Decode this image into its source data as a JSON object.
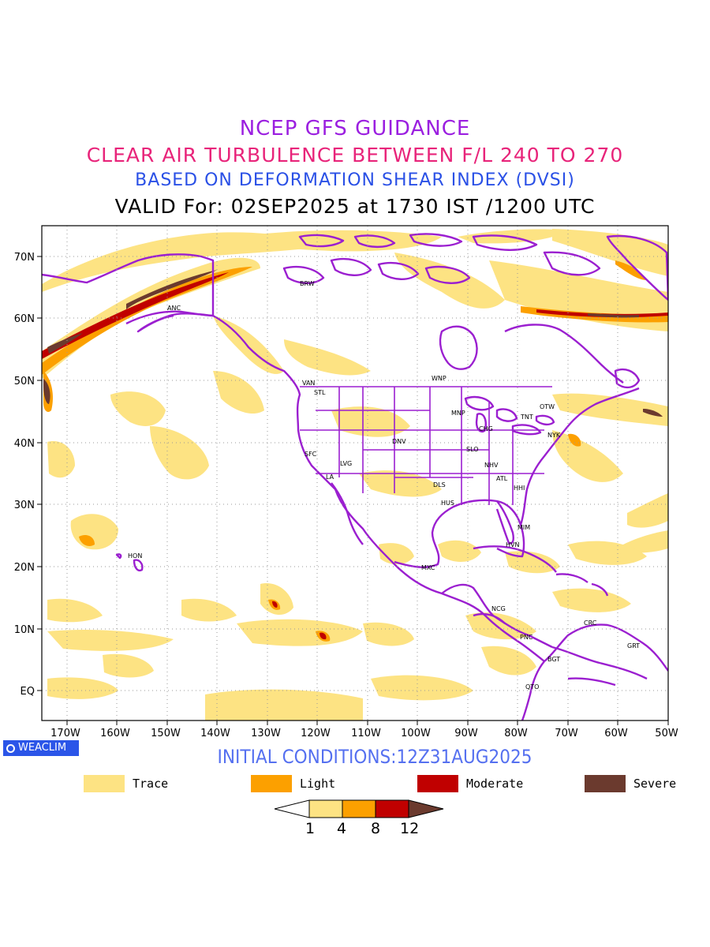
{
  "titles": {
    "line1": "NCEP GFS GUIDANCE",
    "line2": "CLEAR AIR TURBULENCE BETWEEN F/L 240 TO 270",
    "line3": "BASED ON DEFORMATION SHEAR INDEX (DVSI)",
    "line4": "VALID For: 02SEP2025 at 1730 IST /1200 UTC"
  },
  "map": {
    "lat_labels": [
      "70N",
      "60N",
      "50N",
      "40N",
      "30N",
      "20N",
      "10N",
      "EQ"
    ],
    "lon_labels": [
      "170W",
      "160W",
      "150W",
      "140W",
      "130W",
      "120W",
      "110W",
      "100W",
      "90W",
      "80W",
      "70W",
      "60W",
      "50W"
    ],
    "cities": [
      {
        "name": "BRW"
      },
      {
        "name": "ANC"
      },
      {
        "name": "VAN"
      },
      {
        "name": "STL"
      },
      {
        "name": "WNP"
      },
      {
        "name": "MNP"
      },
      {
        "name": "OTW"
      },
      {
        "name": "TNT"
      },
      {
        "name": "CHG"
      },
      {
        "name": "NYK"
      },
      {
        "name": "SFC"
      },
      {
        "name": "DNV"
      },
      {
        "name": "LVG"
      },
      {
        "name": "SLO"
      },
      {
        "name": "LA"
      },
      {
        "name": "NHV"
      },
      {
        "name": "ATL"
      },
      {
        "name": "DLS"
      },
      {
        "name": "HHI"
      },
      {
        "name": "HUS"
      },
      {
        "name": "MIM"
      },
      {
        "name": "HVN"
      },
      {
        "name": "HON"
      },
      {
        "name": "MXC"
      },
      {
        "name": "NCG"
      },
      {
        "name": "CRC"
      },
      {
        "name": "PNC"
      },
      {
        "name": "GRT"
      },
      {
        "name": "BGT"
      },
      {
        "name": "QTO"
      }
    ],
    "colors": {
      "trace": "#fde383",
      "light": "#fca000",
      "moderate": "#c00000",
      "severe": "#6b3a2e",
      "boundaries": "#9b1fd0"
    }
  },
  "badge": {
    "text": "WEACLIM"
  },
  "initial_conditions": "INITIAL CONDITIONS:12Z31AUG2025",
  "legend": [
    {
      "label": "Trace",
      "color": "#fde383"
    },
    {
      "label": "Light",
      "color": "#fca000"
    },
    {
      "label": "Moderate",
      "color": "#c00000"
    },
    {
      "label": "Severe",
      "color": "#6b3a2e"
    }
  ],
  "colorbar": {
    "ticks": [
      "1",
      "4",
      "8",
      "12"
    ]
  }
}
